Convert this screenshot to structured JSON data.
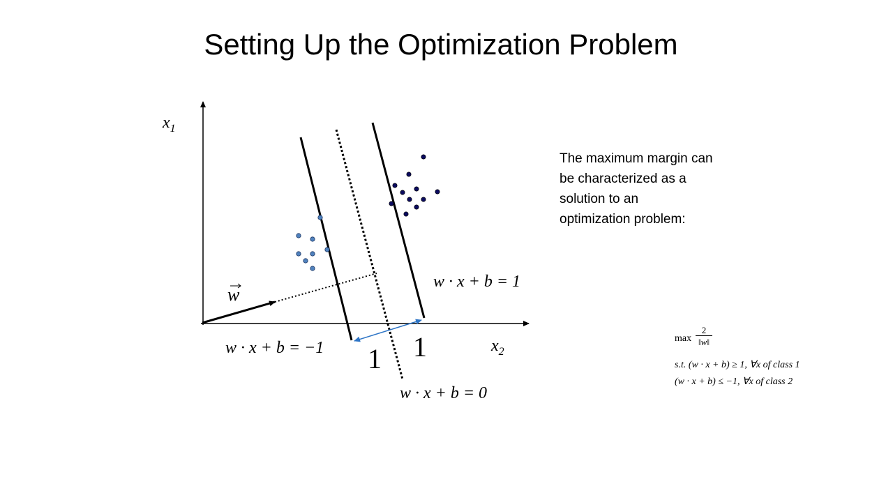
{
  "slide": {
    "title": "Setting Up the Optimization Problem"
  },
  "diagram": {
    "axis_y_label": "x",
    "axis_y_sub": "1",
    "axis_x_label": "x",
    "axis_x_sub": "2",
    "w_label": "w",
    "eq_plus_one": "w · x + b = 1",
    "eq_minus_one": "w · x + b = −1",
    "eq_zero": "w · x + b = 0",
    "margin_left_label": "1",
    "margin_right_label": "1",
    "class_1_color": "#0b0b5e",
    "class_2_color": "#4f81bd",
    "margin_arrow_color": "#2e75c6"
  },
  "description": {
    "lines": [
      "The maximum margin can",
      "be characterized as a",
      "solution to an",
      "optimization problem:"
    ]
  },
  "optimization": {
    "max_label": "max",
    "numerator": "2",
    "denominator": "‖w‖",
    "constraint_1": "s.t. (w · x + b) ≥ 1,  ∀x of class 1",
    "constraint_2": "(w · x + b) ≤ −1,  ∀x of class 2"
  }
}
